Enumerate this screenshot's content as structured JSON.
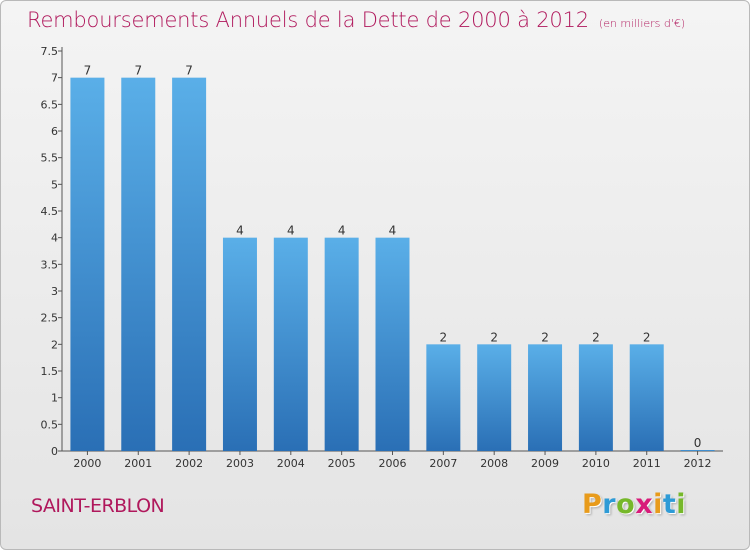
{
  "title": "Remboursements Annuels de la Dette de 2000 à 2012",
  "subtitle": "(en milliers d'€)",
  "location": "SAINT-ERBLON",
  "logo": {
    "letters": [
      "P",
      "r",
      "o",
      "x",
      "i",
      "t",
      "i"
    ],
    "colors": [
      "#e89b1b",
      "#2e9bd6",
      "#76b82a",
      "#d81b7a",
      "#e89b1b",
      "#2e9bd6",
      "#76b82a"
    ]
  },
  "colors": {
    "bar": "#3d93d8",
    "bar_light": "#5aafe8",
    "bar_dark": "#2a6fb5",
    "accent": "#b0185c"
  },
  "chart_data": {
    "type": "bar",
    "categories": [
      "2000",
      "2001",
      "2002",
      "2003",
      "2004",
      "2005",
      "2006",
      "2007",
      "2008",
      "2009",
      "2010",
      "2011",
      "2012"
    ],
    "values": [
      7,
      7,
      7,
      4,
      4,
      4,
      4,
      2,
      2,
      2,
      2,
      2,
      0
    ],
    "data_labels": [
      "7",
      "7",
      "7",
      "4",
      "4",
      "4",
      "4",
      "2",
      "2",
      "2",
      "2",
      "2",
      "0"
    ],
    "y_ticks": [
      "0",
      "0.5",
      "1",
      "1.5",
      "2",
      "2.5",
      "3",
      "3.5",
      "4",
      "4.5",
      "5",
      "5.5",
      "6",
      "6.5",
      "7",
      "7.5"
    ],
    "ylim": [
      0,
      7.5
    ],
    "grid": false,
    "legend": "none"
  }
}
